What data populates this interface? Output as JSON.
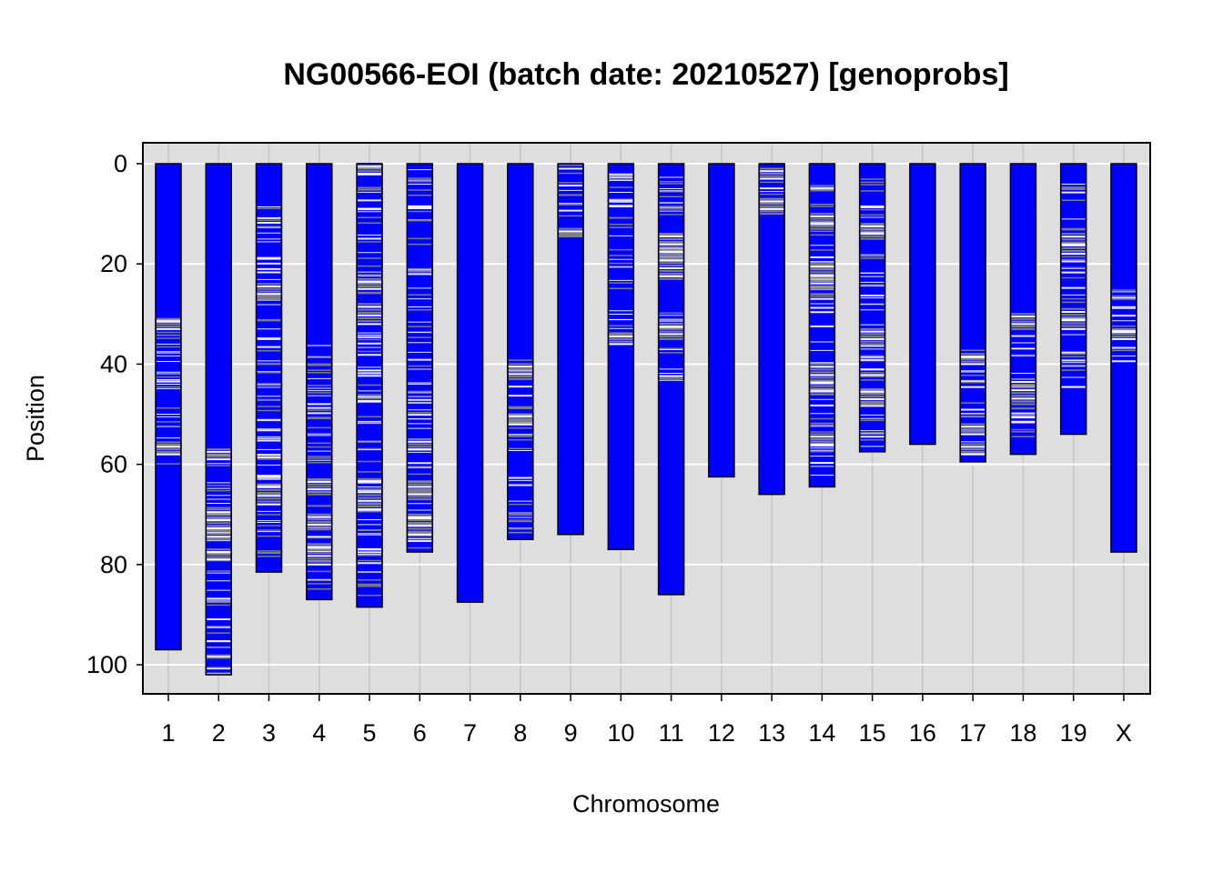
{
  "chart_data": {
    "type": "bar",
    "title": "NG00566-EOI (batch date: 20210527) [genoprobs]",
    "xlabel": "Chromosome",
    "ylabel": "Position",
    "ylim": [
      0,
      105.5
    ],
    "y_reversed": true,
    "yticks": [
      "0",
      "20",
      "40",
      "60",
      "80",
      "100"
    ],
    "grid": true,
    "legend": "none",
    "colors": {
      "chromosome": "#0000ff",
      "homozygous_marker": "#ffffff",
      "heterozygous_marker": "#808080",
      "panel_background": "#dedede",
      "gridline_major": "#ffffff",
      "gridline_vertical": "#c4c4c4"
    },
    "categories": [
      "1",
      "2",
      "3",
      "4",
      "5",
      "6",
      "7",
      "8",
      "9",
      "10",
      "11",
      "12",
      "13",
      "14",
      "15",
      "16",
      "17",
      "18",
      "19",
      "X"
    ],
    "lengths": [
      97,
      102,
      81.5,
      87,
      88.5,
      77.5,
      87.5,
      75,
      74,
      77,
      86,
      62.5,
      66,
      64.5,
      57.5,
      56,
      59.5,
      58,
      54,
      77.5
    ],
    "marked_regions": [
      [
        31,
        60
      ],
      [
        54,
        102
      ],
      [
        5,
        79
      ],
      [
        35,
        85
      ],
      [
        0,
        87
      ],
      [
        0,
        77
      ],
      [],
      [
        38,
        75
      ],
      [
        0,
        15
      ],
      [
        2,
        37
      ],
      [
        2,
        44
      ],
      [],
      [
        1,
        10
      ],
      [
        4,
        63
      ],
      [
        3,
        57
      ],
      [],
      [
        37,
        59
      ],
      [
        30,
        55
      ],
      [
        4,
        45
      ],
      [
        25,
        41
      ]
    ],
    "heterozygous_regions": [
      [
        [
          31,
          33
        ],
        [
          56,
          58
        ]
      ],
      [
        [
          57,
          59
        ],
        [
          69,
          75
        ],
        [
          77,
          79
        ]
      ],
      [
        [
          24,
          27
        ],
        [
          64,
          68
        ]
      ],
      [
        [
          63,
          66
        ],
        [
          70,
          73
        ],
        [
          76,
          80
        ]
      ],
      [
        [
          0,
          2
        ],
        [
          23,
          25
        ],
        [
          28,
          32
        ],
        [
          65,
          69
        ]
      ],
      [
        [
          55,
          57
        ],
        [
          64,
          67
        ],
        [
          70,
          74
        ]
      ],
      [],
      [
        [
          40,
          43
        ],
        [
          50,
          52
        ]
      ],
      [
        [
          13,
          14.5
        ]
      ],
      [
        [
          34,
          36
        ]
      ],
      [
        [
          14,
          23
        ],
        [
          32,
          35
        ]
      ],
      [],
      [
        [
          1,
          3
        ],
        [
          7,
          10
        ]
      ],
      [
        [
          10,
          13
        ],
        [
          20,
          25
        ],
        [
          40,
          46
        ],
        [
          54,
          56
        ]
      ],
      [
        [
          12,
          15
        ],
        [
          33,
          36
        ],
        [
          45,
          48
        ]
      ],
      [],
      [
        [
          38,
          40
        ],
        [
          52,
          54
        ],
        [
          56,
          58
        ]
      ],
      [
        [
          30,
          33
        ],
        [
          43,
          48
        ]
      ],
      [
        [
          14,
          18
        ],
        [
          29,
          33
        ]
      ],
      [
        [
          33,
          35
        ]
      ]
    ]
  }
}
